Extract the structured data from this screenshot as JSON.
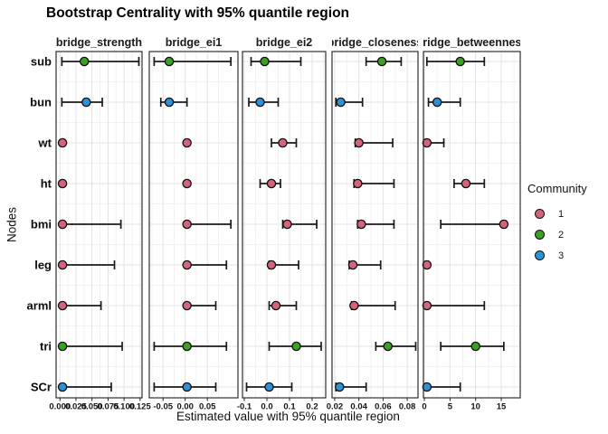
{
  "title": "Bootstrap Centrality with 95% quantile region",
  "legend": {
    "title": "Community",
    "items": [
      {
        "label": "1",
        "color": "#D4647E"
      },
      {
        "label": "2",
        "color": "#3CA023"
      },
      {
        "label": "3",
        "color": "#2E90D5"
      }
    ]
  },
  "chart_data": {
    "type": "scatter",
    "title": "Bootstrap Centrality with 95% quantile region",
    "xlabel": "Estimated value with 95% quantile region",
    "ylabel": "Nodes",
    "legend_title": "Community",
    "legend_position": "right",
    "grid": true,
    "categories": [
      "sub",
      "bun",
      "wt",
      "ht",
      "bmi",
      "leg",
      "arml",
      "tri",
      "SCr"
    ],
    "facets": [
      {
        "label": "bridge_strength",
        "xlim": [
          -0.006,
          0.128
        ],
        "ticks": [
          0,
          0.025,
          0.05,
          0.075,
          0.1,
          0.125
        ],
        "tick_labels": [
          "0.000",
          "0.025",
          "0.050",
          "0.075",
          "0.100",
          "0.125"
        ],
        "points": [
          {
            "node": "sub",
            "community": 2,
            "value": 0.038,
            "lo": 0.003,
            "hi": 0.123
          },
          {
            "node": "bun",
            "community": 3,
            "value": 0.041,
            "lo": 0.003,
            "hi": 0.066
          },
          {
            "node": "wt",
            "community": 1,
            "value": 0.004,
            "lo": 0.003,
            "hi": 0.006
          },
          {
            "node": "ht",
            "community": 1,
            "value": 0.004,
            "lo": 0.003,
            "hi": 0.006
          },
          {
            "node": "bmi",
            "community": 1,
            "value": 0.004,
            "lo": 0.003,
            "hi": 0.095
          },
          {
            "node": "leg",
            "community": 1,
            "value": 0.004,
            "lo": 0.003,
            "hi": 0.085
          },
          {
            "node": "arml",
            "community": 1,
            "value": 0.004,
            "lo": 0.003,
            "hi": 0.064
          },
          {
            "node": "tri",
            "community": 2,
            "value": 0.004,
            "lo": 0.003,
            "hi": 0.097
          },
          {
            "node": "SCr",
            "community": 3,
            "value": 0.004,
            "lo": 0.003,
            "hi": 0.08
          }
        ]
      },
      {
        "label": "bridge_ei1",
        "xlim": [
          -0.081,
          0.119
        ],
        "ticks": [
          -0.05,
          0,
          0.05
        ],
        "tick_labels": [
          "-0.05",
          "0.00",
          "0.05"
        ],
        "points": [
          {
            "node": "sub",
            "community": 2,
            "value": -0.036,
            "lo": -0.07,
            "hi": 0.103
          },
          {
            "node": "bun",
            "community": 3,
            "value": -0.036,
            "lo": -0.055,
            "hi": 0.004
          },
          {
            "node": "wt",
            "community": 1,
            "value": 0.004,
            "lo": 0.003,
            "hi": 0.006
          },
          {
            "node": "ht",
            "community": 1,
            "value": 0.004,
            "lo": 0.003,
            "hi": 0.006
          },
          {
            "node": "bmi",
            "community": 1,
            "value": 0.004,
            "lo": 0.002,
            "hi": 0.103
          },
          {
            "node": "leg",
            "community": 1,
            "value": 0.004,
            "lo": 0.002,
            "hi": 0.093
          },
          {
            "node": "arml",
            "community": 1,
            "value": 0.004,
            "lo": 0.002,
            "hi": 0.069
          },
          {
            "node": "tri",
            "community": 2,
            "value": 0.004,
            "lo": -0.07,
            "hi": 0.093
          },
          {
            "node": "SCr",
            "community": 3,
            "value": 0.004,
            "lo": -0.07,
            "hi": 0.069
          }
        ]
      },
      {
        "label": "bridge_ei2",
        "xlim": [
          -0.108,
          0.26
        ],
        "ticks": [
          -0.1,
          0,
          0.1,
          0.2
        ],
        "tick_labels": [
          "-0.1",
          "0.0",
          "0.1",
          "0.2"
        ],
        "points": [
          {
            "node": "sub",
            "community": 2,
            "value": -0.01,
            "lo": -0.07,
            "hi": 0.15
          },
          {
            "node": "bun",
            "community": 3,
            "value": -0.03,
            "lo": -0.08,
            "hi": 0.05
          },
          {
            "node": "wt",
            "community": 1,
            "value": 0.07,
            "lo": 0.02,
            "hi": 0.13
          },
          {
            "node": "ht",
            "community": 1,
            "value": 0.02,
            "lo": -0.03,
            "hi": 0.06
          },
          {
            "node": "bmi",
            "community": 1,
            "value": 0.09,
            "lo": 0.07,
            "hi": 0.22
          },
          {
            "node": "leg",
            "community": 1,
            "value": 0.02,
            "lo": 0.01,
            "hi": 0.14
          },
          {
            "node": "arml",
            "community": 1,
            "value": 0.04,
            "lo": 0.01,
            "hi": 0.13
          },
          {
            "node": "tri",
            "community": 2,
            "value": 0.13,
            "lo": 0.01,
            "hi": 0.24
          },
          {
            "node": "SCr",
            "community": 3,
            "value": 0.01,
            "lo": -0.09,
            "hi": 0.11
          }
        ]
      },
      {
        "label": "bridge_closeness",
        "xlim": [
          0.0178,
          0.0889
        ],
        "ticks": [
          0.02,
          0.04,
          0.06,
          0.08
        ],
        "tick_labels": [
          "0.02",
          "0.04",
          "0.06",
          "0.08"
        ],
        "points": [
          {
            "node": "sub",
            "community": 2,
            "value": 0.059,
            "lo": 0.046,
            "hi": 0.075
          },
          {
            "node": "bun",
            "community": 3,
            "value": 0.025,
            "lo": 0.021,
            "hi": 0.043
          },
          {
            "node": "wt",
            "community": 1,
            "value": 0.04,
            "lo": 0.037,
            "hi": 0.068
          },
          {
            "node": "ht",
            "community": 1,
            "value": 0.039,
            "lo": 0.036,
            "hi": 0.069
          },
          {
            "node": "bmi",
            "community": 1,
            "value": 0.042,
            "lo": 0.039,
            "hi": 0.069
          },
          {
            "node": "leg",
            "community": 1,
            "value": 0.035,
            "lo": 0.032,
            "hi": 0.058
          },
          {
            "node": "arml",
            "community": 1,
            "value": 0.036,
            "lo": 0.034,
            "hi": 0.07
          },
          {
            "node": "tri",
            "community": 2,
            "value": 0.064,
            "lo": 0.054,
            "hi": 0.087
          },
          {
            "node": "SCr",
            "community": 3,
            "value": 0.024,
            "lo": 0.021,
            "hi": 0.046
          }
        ]
      },
      {
        "label": "bridge_betweenness",
        "xlim": [
          -0.18,
          18.7
        ],
        "ticks": [
          0,
          5,
          10,
          15
        ],
        "tick_labels": [
          "0",
          "5",
          "10",
          "15"
        ],
        "points": [
          {
            "node": "sub",
            "community": 2,
            "value": 7,
            "lo": 0.5,
            "hi": 11.7
          },
          {
            "node": "bun",
            "community": 3,
            "value": 2.5,
            "lo": 0.8,
            "hi": 7
          },
          {
            "node": "wt",
            "community": 1,
            "value": 0.5,
            "lo": 0.3,
            "hi": 3.8
          },
          {
            "node": "ht",
            "community": 1,
            "value": 8.1,
            "lo": 5.8,
            "hi": 11.7
          },
          {
            "node": "bmi",
            "community": 1,
            "value": 15.5,
            "lo": 3.2,
            "hi": 15.8
          },
          {
            "node": "leg",
            "community": 1,
            "value": 0.5,
            "lo": 0.5,
            "hi": 0.5
          },
          {
            "node": "arml",
            "community": 1,
            "value": 0.5,
            "lo": 0.3,
            "hi": 11.7
          },
          {
            "node": "tri",
            "community": 2,
            "value": 10,
            "lo": 3.2,
            "hi": 15.5
          },
          {
            "node": "SCr",
            "community": 3,
            "value": 0.5,
            "lo": 0.3,
            "hi": 7
          }
        ]
      }
    ]
  }
}
